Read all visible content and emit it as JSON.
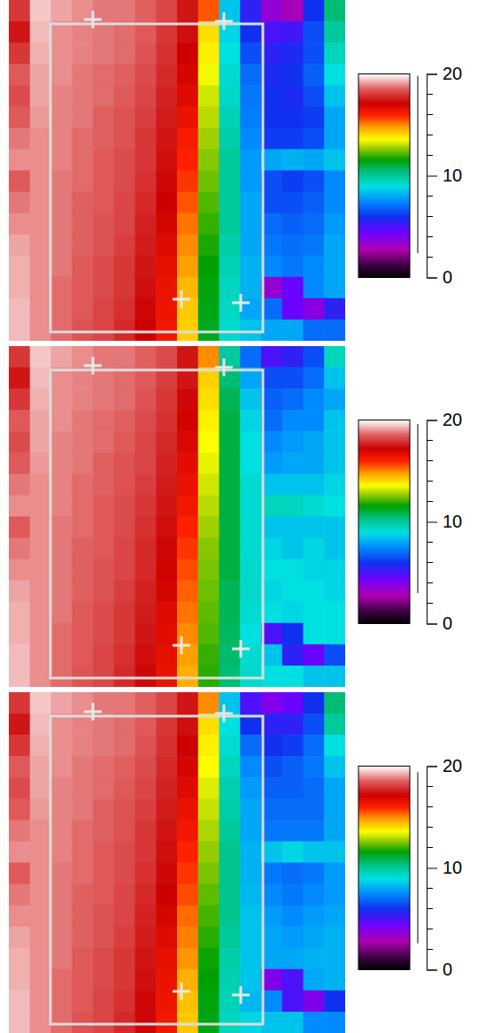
{
  "chart_data": [
    {
      "type": "heatmap",
      "tick_labels": false,
      "colorbar_range": [
        0,
        20
      ],
      "colorbar_ticks": [
        0,
        10,
        20
      ],
      "colorbar_minor_ticks": [
        2,
        4,
        6,
        8,
        12,
        14,
        16,
        18
      ],
      "data_range": [
        2.4,
        19.8
      ],
      "cells": [
        [
          18.0,
          19.5,
          19.2,
          19.0,
          18.8,
          18.8,
          18.6,
          18.2,
          17.5,
          15.5,
          8.5,
          5.5,
          3.5,
          3.0,
          6.0,
          10.5
        ],
        [
          17.5,
          19.4,
          19.0,
          18.9,
          18.8,
          18.7,
          18.5,
          18.0,
          17.4,
          14.0,
          8.8,
          6.0,
          5.0,
          5.2,
          6.5,
          10.0
        ],
        [
          18.0,
          19.3,
          19.0,
          18.9,
          18.8,
          18.7,
          18.4,
          17.9,
          17.2,
          13.8,
          9.0,
          6.5,
          5.5,
          5.8,
          6.5,
          9.5
        ],
        [
          18.5,
          19.2,
          19.0,
          18.8,
          18.7,
          18.6,
          18.3,
          17.8,
          17.0,
          13.5,
          9.2,
          7.0,
          5.8,
          6.0,
          6.8,
          9.0
        ],
        [
          18.3,
          19.2,
          18.9,
          18.8,
          18.7,
          18.5,
          18.2,
          17.7,
          16.8,
          13.2,
          9.4,
          7.2,
          6.0,
          5.8,
          6.5,
          8.5
        ],
        [
          18.5,
          19.1,
          18.9,
          18.8,
          18.6,
          18.4,
          18.1,
          17.6,
          16.5,
          13.0,
          9.6,
          7.3,
          6.0,
          6.0,
          6.2,
          8.0
        ],
        [
          18.8,
          19.0,
          18.9,
          18.7,
          18.6,
          18.4,
          18.0,
          17.5,
          16.2,
          12.8,
          9.8,
          7.5,
          6.2,
          6.2,
          6.5,
          8.0
        ],
        [
          19.0,
          19.0,
          18.9,
          18.7,
          18.5,
          18.3,
          18.0,
          17.4,
          16.0,
          12.6,
          10.0,
          7.8,
          8.0,
          8.2,
          8.0,
          8.5
        ],
        [
          18.5,
          19.0,
          18.8,
          18.7,
          18.5,
          18.3,
          17.9,
          17.3,
          15.8,
          12.4,
          10.0,
          7.8,
          6.5,
          6.2,
          6.5,
          7.5
        ],
        [
          18.8,
          19.0,
          18.8,
          18.6,
          18.5,
          18.2,
          17.8,
          17.2,
          15.5,
          12.2,
          10.0,
          8.0,
          6.5,
          6.5,
          6.8,
          7.5
        ],
        [
          19.0,
          19.0,
          18.8,
          18.6,
          18.4,
          18.2,
          17.7,
          17.0,
          15.2,
          12.0,
          10.0,
          8.0,
          7.0,
          6.8,
          7.0,
          7.8
        ],
        [
          19.2,
          19.0,
          18.8,
          18.6,
          18.4,
          18.1,
          17.6,
          16.8,
          15.0,
          11.8,
          9.8,
          8.0,
          7.2,
          7.0,
          7.2,
          8.0
        ],
        [
          19.3,
          19.0,
          18.8,
          18.5,
          18.3,
          18.0,
          17.5,
          16.6,
          14.8,
          11.6,
          9.6,
          8.2,
          7.5,
          7.2,
          7.5,
          8.0
        ],
        [
          19.3,
          19.0,
          18.7,
          18.5,
          18.3,
          18.0,
          17.4,
          16.5,
          14.5,
          11.5,
          9.5,
          8.2,
          3.5,
          4.5,
          7.5,
          8.0
        ],
        [
          19.4,
          19.0,
          18.7,
          18.5,
          18.2,
          17.9,
          17.3,
          16.4,
          14.3,
          11.4,
          9.4,
          8.0,
          7.0,
          4.5,
          3.8,
          5.5
        ],
        [
          19.4,
          19.0,
          18.7,
          18.4,
          18.2,
          17.8,
          17.2,
          16.3,
          14.2,
          11.3,
          9.3,
          8.5,
          8.0,
          8.0,
          7.0,
          7.0
        ]
      ]
    },
    {
      "type": "heatmap",
      "tick_labels": false,
      "colorbar_range": [
        0,
        20
      ],
      "colorbar_ticks": [
        0,
        10,
        20
      ],
      "colorbar_minor_ticks": [
        2,
        4,
        6,
        8,
        12,
        14,
        16,
        18
      ],
      "data_range": [
        3.0,
        19.6
      ],
      "cells": [
        [
          18.0,
          19.5,
          19.2,
          19.0,
          18.8,
          18.8,
          18.6,
          18.3,
          17.5,
          15.0,
          10.0,
          7.0,
          5.0,
          5.5,
          6.5,
          9.5
        ],
        [
          17.5,
          19.4,
          19.0,
          18.9,
          18.8,
          18.7,
          18.5,
          18.1,
          17.5,
          14.2,
          10.5,
          8.0,
          6.5,
          6.5,
          7.0,
          8.5
        ],
        [
          18.0,
          19.3,
          19.0,
          18.9,
          18.8,
          18.7,
          18.4,
          18.0,
          17.3,
          14.0,
          10.8,
          8.5,
          6.8,
          7.0,
          7.5,
          8.0
        ],
        [
          18.5,
          19.2,
          19.0,
          18.8,
          18.7,
          18.6,
          18.3,
          17.9,
          17.1,
          13.8,
          11.0,
          8.8,
          7.0,
          7.5,
          7.5,
          8.5
        ],
        [
          18.3,
          19.2,
          18.9,
          18.8,
          18.7,
          18.5,
          18.2,
          17.8,
          16.9,
          13.6,
          11.0,
          9.0,
          7.5,
          7.8,
          8.0,
          8.5
        ],
        [
          18.5,
          19.1,
          18.9,
          18.8,
          18.6,
          18.4,
          18.2,
          17.7,
          16.7,
          13.4,
          11.0,
          9.0,
          7.8,
          8.0,
          8.0,
          8.5
        ],
        [
          18.8,
          19.0,
          18.9,
          18.7,
          18.6,
          18.4,
          18.1,
          17.6,
          16.5,
          13.2,
          11.0,
          9.2,
          8.5,
          8.5,
          8.5,
          8.8
        ],
        [
          19.0,
          19.0,
          18.9,
          18.7,
          18.5,
          18.3,
          18.0,
          17.5,
          16.3,
          13.0,
          11.0,
          9.2,
          9.5,
          9.5,
          9.2,
          9.0
        ],
        [
          18.5,
          19.0,
          18.8,
          18.7,
          18.5,
          18.3,
          17.9,
          17.4,
          16.0,
          12.8,
          11.0,
          9.2,
          8.5,
          8.5,
          8.5,
          8.5
        ],
        [
          18.8,
          19.0,
          18.8,
          18.6,
          18.5,
          18.2,
          17.8,
          17.3,
          15.8,
          12.6,
          11.0,
          9.2,
          8.8,
          8.5,
          8.8,
          8.5
        ],
        [
          19.0,
          19.0,
          18.8,
          18.6,
          18.4,
          18.2,
          17.8,
          17.1,
          15.6,
          12.5,
          11.0,
          9.3,
          9.0,
          9.0,
          8.8,
          8.8
        ],
        [
          19.2,
          19.0,
          18.8,
          18.6,
          18.4,
          18.1,
          17.7,
          17.0,
          15.4,
          12.4,
          10.8,
          9.3,
          8.8,
          9.0,
          9.0,
          8.8
        ],
        [
          19.3,
          19.0,
          18.8,
          18.5,
          18.3,
          18.0,
          17.6,
          16.8,
          15.2,
          12.3,
          10.8,
          9.2,
          9.0,
          8.8,
          9.0,
          9.0
        ],
        [
          19.3,
          19.0,
          18.7,
          18.5,
          18.3,
          18.0,
          17.5,
          16.7,
          15.0,
          12.2,
          10.7,
          9.0,
          5.0,
          6.0,
          9.0,
          9.0
        ],
        [
          19.4,
          19.0,
          18.7,
          18.5,
          18.2,
          17.9,
          17.4,
          16.6,
          14.8,
          12.0,
          10.6,
          9.2,
          8.5,
          5.5,
          4.5,
          6.5
        ],
        [
          19.4,
          19.0,
          18.7,
          18.4,
          18.2,
          17.8,
          17.3,
          16.5,
          14.6,
          11.9,
          10.5,
          9.3,
          9.0,
          9.0,
          8.5,
          8.5
        ]
      ]
    },
    {
      "type": "heatmap",
      "tick_labels": false,
      "colorbar_range": [
        0,
        20
      ],
      "colorbar_ticks": [
        0,
        10,
        20
      ],
      "colorbar_minor_ticks": [
        2,
        4,
        6,
        8,
        12,
        14,
        16,
        18
      ],
      "data_range": [
        2.6,
        19.4
      ],
      "cells": [
        [
          18.0,
          19.5,
          19.2,
          19.0,
          18.8,
          18.8,
          18.6,
          18.2,
          17.5,
          15.0,
          8.5,
          5.0,
          4.0,
          4.5,
          6.0,
          10.5
        ],
        [
          17.5,
          19.4,
          19.0,
          18.9,
          18.8,
          18.7,
          18.5,
          18.0,
          17.4,
          14.0,
          9.0,
          6.0,
          5.5,
          5.5,
          6.5,
          10.0
        ],
        [
          18.0,
          19.3,
          19.0,
          18.9,
          18.8,
          18.7,
          18.4,
          17.9,
          17.2,
          13.8,
          9.2,
          7.0,
          6.0,
          6.2,
          7.0,
          9.0
        ],
        [
          18.5,
          19.2,
          19.0,
          18.8,
          18.7,
          18.6,
          18.3,
          17.8,
          17.0,
          13.6,
          9.5,
          7.5,
          6.5,
          6.8,
          7.2,
          8.5
        ],
        [
          18.3,
          19.2,
          18.9,
          18.8,
          18.7,
          18.5,
          18.2,
          17.7,
          16.8,
          13.3,
          9.7,
          7.8,
          6.8,
          6.8,
          7.0,
          8.0
        ],
        [
          18.5,
          19.1,
          18.9,
          18.8,
          18.6,
          18.4,
          18.1,
          17.6,
          16.5,
          13.1,
          9.8,
          8.0,
          7.0,
          7.0,
          7.0,
          8.0
        ],
        [
          18.8,
          19.0,
          18.9,
          18.7,
          18.6,
          18.4,
          18.0,
          17.5,
          16.3,
          12.9,
          10.0,
          8.0,
          7.2,
          7.2,
          7.2,
          8.0
        ],
        [
          19.0,
          19.0,
          18.9,
          18.7,
          18.5,
          18.3,
          18.0,
          17.4,
          16.0,
          12.7,
          10.2,
          8.2,
          8.5,
          8.8,
          8.5,
          8.5
        ],
        [
          18.5,
          19.0,
          18.8,
          18.7,
          18.5,
          18.3,
          17.9,
          17.3,
          15.8,
          12.5,
          10.2,
          8.2,
          7.2,
          7.0,
          7.2,
          7.8
        ],
        [
          18.8,
          19.0,
          18.8,
          18.6,
          18.5,
          18.2,
          17.8,
          17.2,
          15.6,
          12.3,
          10.2,
          8.3,
          7.5,
          7.2,
          7.5,
          7.8
        ],
        [
          19.0,
          19.0,
          18.8,
          18.6,
          18.4,
          18.2,
          17.7,
          17.0,
          15.3,
          12.1,
          10.2,
          8.5,
          7.8,
          7.5,
          7.8,
          8.0
        ],
        [
          19.2,
          19.0,
          18.8,
          18.6,
          18.4,
          18.1,
          17.6,
          16.8,
          15.1,
          11.9,
          10.0,
          8.5,
          8.0,
          7.8,
          8.0,
          8.2
        ],
        [
          19.3,
          19.0,
          18.8,
          18.5,
          18.3,
          18.0,
          17.5,
          16.6,
          14.9,
          11.7,
          9.8,
          8.5,
          8.0,
          8.0,
          8.2,
          8.2
        ],
        [
          19.3,
          19.0,
          18.7,
          18.5,
          18.3,
          18.0,
          17.4,
          16.5,
          14.6,
          11.6,
          9.7,
          8.5,
          4.0,
          5.0,
          8.0,
          8.2
        ],
        [
          19.4,
          19.0,
          18.7,
          18.5,
          18.2,
          17.9,
          17.3,
          16.4,
          14.4,
          11.5,
          9.6,
          8.3,
          7.5,
          5.0,
          4.0,
          6.0
        ],
        [
          19.4,
          19.0,
          18.7,
          18.4,
          18.2,
          17.8,
          17.3,
          16.3,
          14.3,
          11.4,
          9.5,
          8.8,
          8.5,
          8.5,
          7.5,
          7.5
        ]
      ]
    }
  ]
}
